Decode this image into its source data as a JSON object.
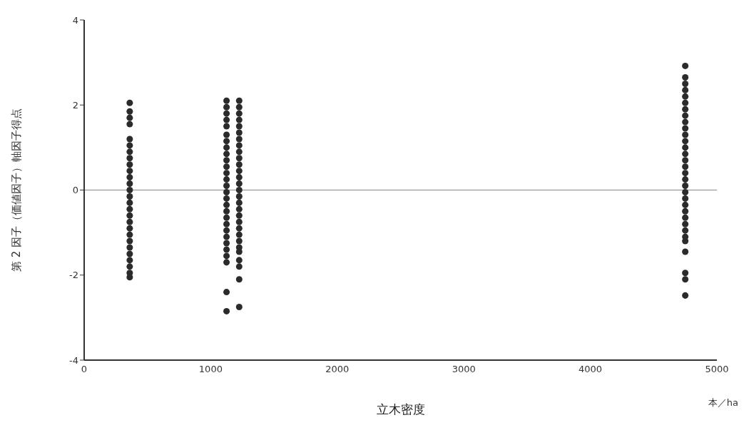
{
  "chart_data": {
    "type": "scatter",
    "xlabel": "立木密度",
    "ylabel": "第 2 因子（価値因子）軸因子得点",
    "annotations": [
      "本／ha"
    ],
    "xlim": [
      0,
      5000
    ],
    "xticks": [
      0,
      1000,
      2000,
      3000,
      4000,
      5000
    ],
    "ylim": [
      -4,
      4
    ],
    "yticks": [
      -4,
      -2,
      0,
      2,
      4
    ],
    "grid": false,
    "marker": "circle",
    "ref_lines": [
      {
        "axis": "y",
        "value": 0,
        "color": "#888888"
      }
    ],
    "series": [
      {
        "color": "#2b2b2b",
        "x": [
          360,
          360,
          360,
          360,
          360,
          360,
          360,
          360,
          360,
          360,
          360,
          360,
          360,
          360,
          360,
          360,
          360,
          360,
          360,
          360,
          360,
          360,
          360,
          360,
          360,
          360,
          360
        ],
        "values": [
          2.05,
          1.85,
          1.7,
          1.55,
          1.2,
          1.05,
          0.9,
          0.75,
          0.6,
          0.45,
          0.3,
          0.15,
          0,
          -0.15,
          -0.3,
          -0.45,
          -0.6,
          -0.75,
          -0.9,
          -1.05,
          -1.2,
          -1.35,
          -1.5,
          -1.65,
          -1.8,
          -1.95,
          -2.05
        ]
      },
      {
        "color": "#2b2b2b",
        "x": [
          1125,
          1125,
          1125,
          1125,
          1125,
          1125,
          1125,
          1125,
          1125,
          1125,
          1125,
          1125,
          1125,
          1125,
          1125,
          1125,
          1125,
          1125,
          1125,
          1125,
          1125,
          1125,
          1125,
          1125,
          1125,
          1125,
          1125,
          1125
        ],
        "values": [
          2.1,
          1.95,
          1.8,
          1.65,
          1.5,
          1.3,
          1.15,
          1,
          0.85,
          0.7,
          0.55,
          0.4,
          0.25,
          0.1,
          -0.05,
          -0.2,
          -0.35,
          -0.5,
          -0.65,
          -0.8,
          -0.95,
          -1.1,
          -1.25,
          -1.4,
          -1.55,
          -1.7,
          -2.4,
          -2.85
        ]
      },
      {
        "color": "#2b2b2b",
        "x": [
          1225,
          1225,
          1225,
          1225,
          1225,
          1225,
          1225,
          1225,
          1225,
          1225,
          1225,
          1225,
          1225,
          1225,
          1225,
          1225,
          1225,
          1225,
          1225,
          1225,
          1225,
          1225,
          1225,
          1225,
          1225,
          1225,
          1225,
          1225,
          1225
        ],
        "values": [
          2.1,
          1.95,
          1.8,
          1.65,
          1.5,
          1.35,
          1.2,
          1.05,
          0.9,
          0.75,
          0.6,
          0.45,
          0.3,
          0.15,
          0,
          -0.15,
          -0.3,
          -0.45,
          -0.6,
          -0.75,
          -0.9,
          -1.05,
          -1.2,
          -1.35,
          -1.45,
          -1.65,
          -1.8,
          -2.1,
          -2.75
        ]
      },
      {
        "color": "#2b2b2b",
        "x": [
          4750,
          4750,
          4750,
          4750,
          4750,
          4750,
          4750,
          4750,
          4750,
          4750,
          4750,
          4750,
          4750,
          4750,
          4750,
          4750,
          4750,
          4750,
          4750,
          4750,
          4750,
          4750,
          4750,
          4750,
          4750,
          4750,
          4750,
          4750,
          4750,
          4750,
          4750,
          4750
        ],
        "values": [
          2.92,
          2.65,
          2.5,
          2.35,
          2.2,
          2.05,
          1.9,
          1.75,
          1.6,
          1.45,
          1.3,
          1.15,
          1,
          0.85,
          0.7,
          0.55,
          0.4,
          0.25,
          0.1,
          -0.05,
          -0.2,
          -0.35,
          -0.5,
          -0.65,
          -0.8,
          -0.95,
          -1.1,
          -1.2,
          -1.45,
          -1.95,
          -2.1,
          -2.48
        ]
      }
    ]
  }
}
